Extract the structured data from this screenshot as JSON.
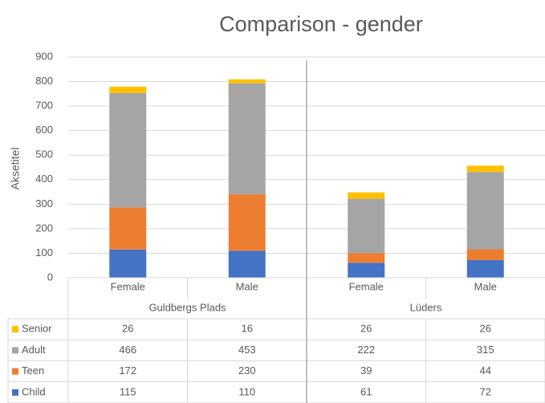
{
  "chart_data": {
    "type": "stacked_bar",
    "title": "Comparison - gender",
    "y_label": "Aksetitel",
    "categories": [
      "Female",
      "Male",
      "Female",
      "Male"
    ],
    "groups": [
      "Guldbergs Plads",
      "Lüders"
    ],
    "series": [
      {
        "name": "Child",
        "color": "#4472c4",
        "values": [
          115,
          110,
          61,
          72
        ]
      },
      {
        "name": "Teen",
        "color": "#ed7d31",
        "values": [
          172,
          230,
          39,
          44
        ]
      },
      {
        "name": "Adult",
        "color": "#a5a5a5",
        "values": [
          466,
          453,
          222,
          315
        ]
      },
      {
        "name": "Senior",
        "color": "#ffc000",
        "values": [
          26,
          16,
          26,
          26
        ]
      }
    ],
    "ylim": [
      0,
      900
    ],
    "yticks": [
      0,
      100,
      200,
      300,
      400,
      500,
      600,
      700,
      800,
      900
    ],
    "grid": true
  }
}
